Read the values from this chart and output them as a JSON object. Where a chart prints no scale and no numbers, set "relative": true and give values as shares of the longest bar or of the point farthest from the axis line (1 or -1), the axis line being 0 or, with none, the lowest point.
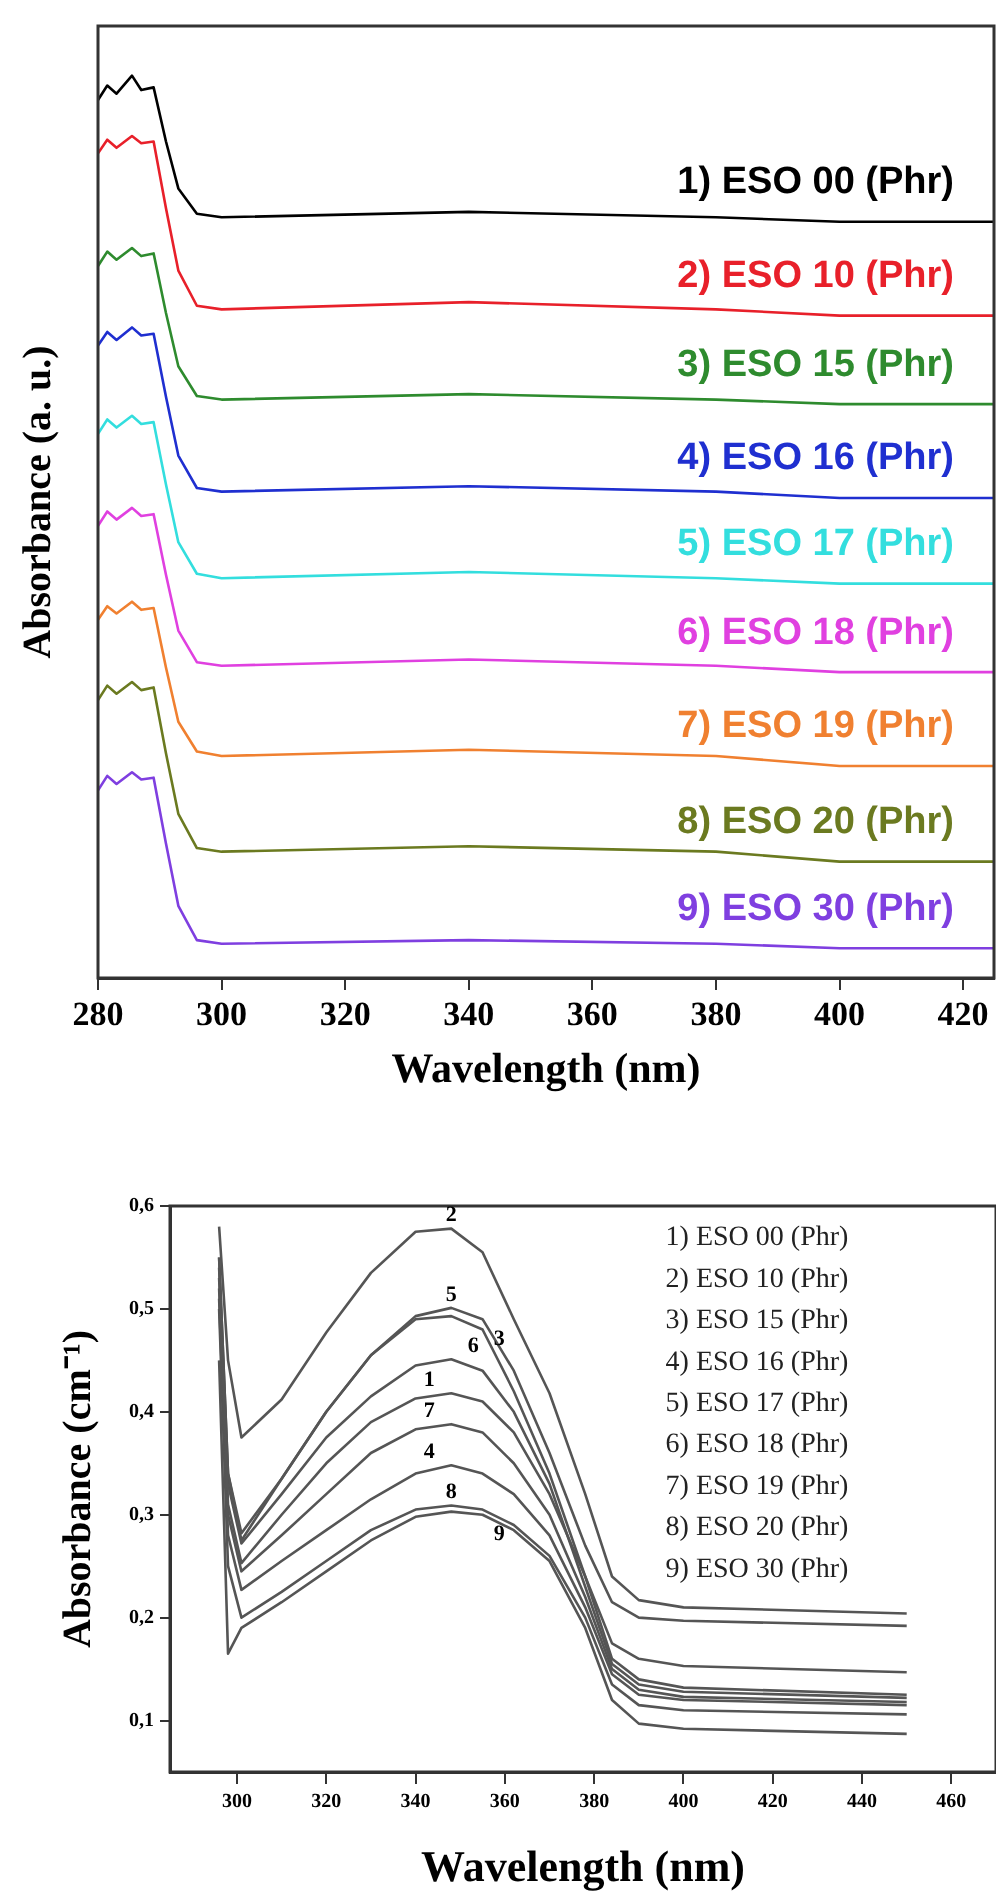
{
  "chart_data": [
    {
      "type": "line",
      "relative": true,
      "ylabel": "Absorbance (a. u.)",
      "xlabel": "Wavelength (nm)",
      "xlim": [
        280,
        425
      ],
      "xticks": [
        280,
        300,
        320,
        340,
        360,
        380,
        400,
        420
      ],
      "x": [
        280,
        281.5,
        283,
        285.5,
        287,
        289,
        291,
        293,
        296,
        300,
        340,
        380,
        400,
        425
      ],
      "series": [
        {
          "name": "1) ESO 00 (Phr)",
          "color": "#000000",
          "values": [
            0.973,
            0.989,
            0.98,
            1.0,
            0.984,
            0.987,
            0.927,
            0.875,
            0.847,
            0.843,
            0.849,
            0.843,
            0.838,
            0.838
          ]
        },
        {
          "name": "2) ESO 10 (Phr)",
          "color": "#e8202a",
          "values": [
            0.914,
            0.929,
            0.92,
            0.933,
            0.925,
            0.927,
            0.853,
            0.784,
            0.745,
            0.741,
            0.749,
            0.741,
            0.734,
            0.734
          ]
        },
        {
          "name": "3) ESO 15 (Phr)",
          "color": "#2e8b2e",
          "values": [
            0.789,
            0.805,
            0.796,
            0.809,
            0.8,
            0.803,
            0.737,
            0.678,
            0.645,
            0.641,
            0.647,
            0.641,
            0.636,
            0.636
          ]
        },
        {
          "name": "4) ESO 16 (Phr)",
          "color": "#1f2fd0",
          "values": [
            0.701,
            0.716,
            0.707,
            0.721,
            0.712,
            0.714,
            0.644,
            0.579,
            0.543,
            0.539,
            0.545,
            0.539,
            0.532,
            0.532
          ]
        },
        {
          "name": "5) ESO 17 (Phr)",
          "color": "#33dede",
          "values": [
            0.603,
            0.619,
            0.61,
            0.623,
            0.614,
            0.616,
            0.547,
            0.483,
            0.448,
            0.443,
            0.45,
            0.443,
            0.437,
            0.437
          ]
        },
        {
          "name": "6) ESO 18 (Phr)",
          "color": "#e040e0",
          "values": [
            0.501,
            0.517,
            0.508,
            0.521,
            0.512,
            0.514,
            0.447,
            0.385,
            0.35,
            0.346,
            0.353,
            0.346,
            0.339,
            0.339
          ]
        },
        {
          "name": "7) ESO 19 (Phr)",
          "color": "#f08030",
          "values": [
            0.397,
            0.412,
            0.404,
            0.417,
            0.408,
            0.41,
            0.344,
            0.284,
            0.251,
            0.246,
            0.253,
            0.246,
            0.235,
            0.235
          ]
        },
        {
          "name": "8) ESO 20 (Phr)",
          "color": "#6b7a20",
          "values": [
            0.308,
            0.324,
            0.315,
            0.328,
            0.319,
            0.322,
            0.249,
            0.182,
            0.144,
            0.14,
            0.146,
            0.14,
            0.129,
            0.129
          ]
        },
        {
          "name": "9) ESO 30 (Phr)",
          "color": "#7f3fe0",
          "values": [
            0.208,
            0.224,
            0.215,
            0.228,
            0.22,
            0.222,
            0.149,
            0.08,
            0.042,
            0.038,
            0.042,
            0.038,
            0.033,
            0.033
          ]
        }
      ]
    },
    {
      "type": "line",
      "ylabel": "Absorbance (cm⁻¹)",
      "xlabel": "Wavelength (nm)",
      "xlim": [
        285,
        470
      ],
      "xticks": [
        300,
        320,
        340,
        360,
        380,
        400,
        420,
        440,
        460
      ],
      "ylim": [
        0.05,
        0.6
      ],
      "yticks": [
        {
          "value": 0.1,
          "label": "0,1"
        },
        {
          "value": 0.2,
          "label": "0,2"
        },
        {
          "value": 0.3,
          "label": "0,3"
        },
        {
          "value": 0.4,
          "label": "0,4"
        },
        {
          "value": 0.5,
          "label": "0,5"
        },
        {
          "value": 0.6,
          "label": "0,6"
        }
      ],
      "x": [
        296,
        298,
        301,
        310,
        320,
        330,
        340,
        348,
        355,
        362,
        370,
        378,
        384,
        390,
        400,
        450
      ],
      "annotations": [
        "1) ESO 00 (Phr)",
        "2) ESO 10 (Phr)",
        "3) ESO 15 (Phr)",
        "4) ESO 16 (Phr)",
        "5) ESO 17 (Phr)",
        "6) ESO 18 (Phr)",
        "7) ESO 19 (Phr)",
        "8) ESO 20 (Phr)",
        "9) ESO 30 (Phr)"
      ],
      "series": [
        {
          "name": "1",
          "color": "#555555",
          "values": [
            0.53,
            0.31,
            0.253,
            0.3,
            0.35,
            0.39,
            0.413,
            0.418,
            0.41,
            0.38,
            0.32,
            0.24,
            0.175,
            0.16,
            0.153,
            0.147
          ]
        },
        {
          "name": "2",
          "color": "#555555",
          "values": [
            0.58,
            0.45,
            0.375,
            0.412,
            0.477,
            0.535,
            0.575,
            0.578,
            0.555,
            0.49,
            0.418,
            0.32,
            0.24,
            0.217,
            0.21,
            0.204
          ]
        },
        {
          "name": "3",
          "color": "#555555",
          "values": [
            0.55,
            0.34,
            0.282,
            0.335,
            0.4,
            0.455,
            0.49,
            0.493,
            0.48,
            0.42,
            0.34,
            0.24,
            0.16,
            0.14,
            0.132,
            0.125
          ]
        },
        {
          "name": "4",
          "color": "#555555",
          "values": [
            0.51,
            0.28,
            0.227,
            0.255,
            0.285,
            0.315,
            0.34,
            0.348,
            0.34,
            0.32,
            0.28,
            0.21,
            0.145,
            0.125,
            0.12,
            0.115
          ]
        },
        {
          "name": "5",
          "color": "#555555",
          "values": [
            0.55,
            0.34,
            0.275,
            0.335,
            0.4,
            0.455,
            0.493,
            0.501,
            0.49,
            0.44,
            0.36,
            0.27,
            0.215,
            0.2,
            0.197,
            0.192
          ]
        },
        {
          "name": "6",
          "color": "#555555",
          "values": [
            0.54,
            0.33,
            0.272,
            0.32,
            0.375,
            0.415,
            0.445,
            0.451,
            0.44,
            0.4,
            0.33,
            0.23,
            0.155,
            0.135,
            0.128,
            0.122
          ]
        },
        {
          "name": "7",
          "color": "#555555",
          "values": [
            0.52,
            0.3,
            0.245,
            0.28,
            0.32,
            0.36,
            0.383,
            0.388,
            0.38,
            0.35,
            0.3,
            0.22,
            0.15,
            0.13,
            0.123,
            0.118
          ]
        },
        {
          "name": "8",
          "color": "#555555",
          "values": [
            0.5,
            0.25,
            0.2,
            0.225,
            0.255,
            0.285,
            0.305,
            0.309,
            0.305,
            0.29,
            0.26,
            0.2,
            0.135,
            0.115,
            0.11,
            0.106
          ]
        },
        {
          "name": "9",
          "color": "#555555",
          "values": [
            0.45,
            0.165,
            0.19,
            0.215,
            0.245,
            0.275,
            0.298,
            0.303,
            0.3,
            0.285,
            0.255,
            0.19,
            0.12,
            0.097,
            0.092,
            0.087
          ]
        }
      ]
    }
  ]
}
